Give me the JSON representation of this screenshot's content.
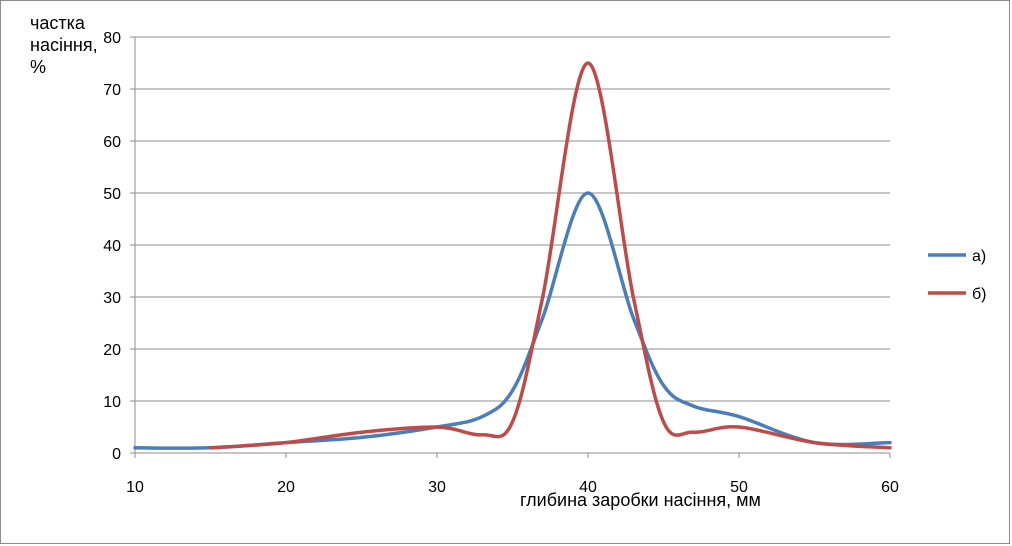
{
  "chart_data": {
    "type": "line",
    "ylabel_lines": [
      "частка",
      "насіння,",
      "%"
    ],
    "xlabel": "глибина заробки насіння, мм",
    "xlim": [
      10,
      60
    ],
    "ylim": [
      0,
      80
    ],
    "xticks": [
      10,
      20,
      30,
      40,
      50,
      60
    ],
    "yticks": [
      0,
      10,
      20,
      30,
      40,
      50,
      60,
      70,
      80
    ],
    "grid": "horizontal",
    "legend_position": "right",
    "series": [
      {
        "name": "а)",
        "color": "#4a7ebb",
        "x": [
          10,
          15,
          20,
          25,
          30,
          33,
          35,
          37,
          40,
          43,
          45,
          47,
          50,
          55,
          60
        ],
        "y": [
          1,
          1,
          2,
          3,
          5,
          7,
          12,
          26,
          50,
          26,
          13,
          9,
          7,
          2,
          2
        ]
      },
      {
        "name": "б)",
        "color": "#be4b48",
        "x": [
          15,
          20,
          25,
          30,
          33,
          35,
          37,
          40,
          43,
          45,
          47,
          50,
          55,
          60
        ],
        "y": [
          1,
          2,
          4,
          5,
          3.5,
          6,
          30,
          75,
          30,
          6,
          4,
          5,
          2,
          1
        ]
      }
    ]
  }
}
